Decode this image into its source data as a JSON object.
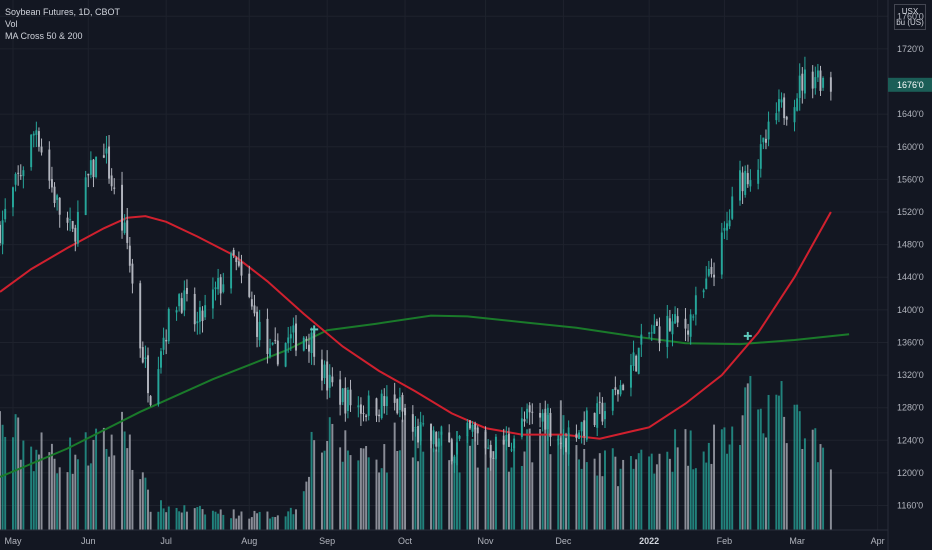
{
  "legend": {
    "symbol": "Soybean Futures, 1D, CBOT",
    "volume": "Vol",
    "indicator": "MA Cross 50 & 200"
  },
  "unit": [
    "USX",
    "bu (US)"
  ],
  "last_price_label": "1676'0",
  "colors": {
    "background": "#131722",
    "grid": "#1e222d",
    "up": "#26a69a",
    "down": "#b2b5be",
    "ma_fast": "#d0202e",
    "ma_slow": "#1a7a2a",
    "cross": "#5fc9bc",
    "price_tag": "#1b5e57",
    "axis_text": "#b2b5be"
  },
  "chart_data": {
    "type": "candlestick",
    "title": "Soybean Futures, 1D, CBOT",
    "ylim": [
      1130,
      1780
    ],
    "y_ticks": [
      {
        "v": 1160,
        "label": "1160'0"
      },
      {
        "v": 1200,
        "label": "1200'0"
      },
      {
        "v": 1240,
        "label": "1240'0"
      },
      {
        "v": 1280,
        "label": "1280'0"
      },
      {
        "v": 1320,
        "label": "1320'0"
      },
      {
        "v": 1360,
        "label": "1360'0"
      },
      {
        "v": 1400,
        "label": "1400'0"
      },
      {
        "v": 1440,
        "label": "1440'0"
      },
      {
        "v": 1480,
        "label": "1480'0"
      },
      {
        "v": 1520,
        "label": "1520'0"
      },
      {
        "v": 1560,
        "label": "1560'0"
      },
      {
        "v": 1600,
        "label": "1600'0"
      },
      {
        "v": 1640,
        "label": "1640'0"
      },
      {
        "v": 1720,
        "label": "1720'0"
      },
      {
        "v": 1760,
        "label": "1760'0"
      }
    ],
    "last_price": 1676,
    "x_ticks": [
      {
        "date": "2021-05-03",
        "label": "May"
      },
      {
        "date": "2021-06-01",
        "label": "Jun"
      },
      {
        "date": "2021-07-01",
        "label": "Jul"
      },
      {
        "date": "2021-08-02",
        "label": "Aug"
      },
      {
        "date": "2021-09-01",
        "label": "Sep"
      },
      {
        "date": "2021-10-01",
        "label": "Oct"
      },
      {
        "date": "2021-11-01",
        "label": "Nov"
      },
      {
        "date": "2021-12-01",
        "label": "Dec"
      },
      {
        "date": "2022-01-03",
        "label": "2022",
        "bold": true
      },
      {
        "date": "2022-02-01",
        "label": "Feb"
      },
      {
        "date": "2022-03-01",
        "label": "Mar"
      },
      {
        "date": "2022-04-01",
        "label": "Apr"
      }
    ],
    "x_range": [
      "2021-04-28",
      "2022-04-05"
    ],
    "close_path": [
      [
        "2021-04-28",
        1500
      ],
      [
        "2021-05-05",
        1560
      ],
      [
        "2021-05-12",
        1625
      ],
      [
        "2021-05-17",
        1560
      ],
      [
        "2021-05-21",
        1520
      ],
      [
        "2021-05-26",
        1490
      ],
      [
        "2021-06-01",
        1560
      ],
      [
        "2021-06-07",
        1600
      ],
      [
        "2021-06-11",
        1540
      ],
      [
        "2021-06-16",
        1480
      ],
      [
        "2021-06-21",
        1360
      ],
      [
        "2021-06-25",
        1300
      ],
      [
        "2021-06-29",
        1360
      ],
      [
        "2021-07-06",
        1420
      ],
      [
        "2021-07-13",
        1380
      ],
      [
        "2021-07-20",
        1420
      ],
      [
        "2021-07-27",
        1460
      ],
      [
        "2021-08-03",
        1400
      ],
      [
        "2021-08-10",
        1340
      ],
      [
        "2021-08-16",
        1360
      ],
      [
        "2021-08-23",
        1370
      ],
      [
        "2021-08-27",
        1360
      ],
      [
        "2021-09-01",
        1310
      ],
      [
        "2021-09-08",
        1290
      ],
      [
        "2021-09-15",
        1280
      ],
      [
        "2021-09-22",
        1285
      ],
      [
        "2021-09-29",
        1280
      ],
      [
        "2021-10-04",
        1250
      ],
      [
        "2021-10-12",
        1240
      ],
      [
        "2021-10-20",
        1230
      ],
      [
        "2021-10-27",
        1250
      ],
      [
        "2021-11-03",
        1230
      ],
      [
        "2021-11-10",
        1240
      ],
      [
        "2021-11-17",
        1265
      ],
      [
        "2021-11-24",
        1270
      ],
      [
        "2021-12-01",
        1235
      ],
      [
        "2021-12-06",
        1255
      ],
      [
        "2021-12-13",
        1265
      ],
      [
        "2021-12-20",
        1290
      ],
      [
        "2021-12-27",
        1330
      ],
      [
        "2022-01-03",
        1370
      ],
      [
        "2022-01-10",
        1380
      ],
      [
        "2022-01-17",
        1380
      ],
      [
        "2022-01-24",
        1420
      ],
      [
        "2022-01-31",
        1480
      ],
      [
        "2022-02-07",
        1560
      ],
      [
        "2022-02-14",
        1580
      ],
      [
        "2022-02-21",
        1640
      ],
      [
        "2022-02-25",
        1650
      ],
      [
        "2022-03-03",
        1680
      ],
      [
        "2022-03-08",
        1690
      ],
      [
        "2022-03-14",
        1676
      ]
    ],
    "ma_fast": [
      [
        "2021-04-28",
        1422
      ],
      [
        "2021-05-10",
        1450
      ],
      [
        "2021-05-24",
        1476
      ],
      [
        "2021-06-07",
        1500
      ],
      [
        "2021-06-16",
        1513
      ],
      [
        "2021-06-23",
        1515
      ],
      [
        "2021-07-01",
        1508
      ],
      [
        "2021-07-13",
        1490
      ],
      [
        "2021-07-27",
        1467
      ],
      [
        "2021-08-09",
        1435
      ],
      [
        "2021-08-23",
        1395
      ],
      [
        "2021-09-07",
        1355
      ],
      [
        "2021-09-21",
        1325
      ],
      [
        "2021-10-05",
        1300
      ],
      [
        "2021-10-19",
        1273
      ],
      [
        "2021-11-01",
        1255
      ],
      [
        "2021-11-15",
        1247
      ],
      [
        "2021-12-01",
        1247
      ],
      [
        "2021-12-15",
        1242
      ],
      [
        "2022-01-03",
        1256
      ],
      [
        "2022-01-17",
        1285
      ],
      [
        "2022-01-31",
        1320
      ],
      [
        "2022-02-14",
        1372
      ],
      [
        "2022-02-28",
        1440
      ],
      [
        "2022-03-14",
        1520
      ]
    ],
    "ma_slow": [
      [
        "2021-04-28",
        1195
      ],
      [
        "2021-05-24",
        1230
      ],
      [
        "2021-06-21",
        1275
      ],
      [
        "2021-07-19",
        1315
      ],
      [
        "2021-08-16",
        1350
      ],
      [
        "2021-09-01",
        1375
      ],
      [
        "2021-09-20",
        1383
      ],
      [
        "2021-10-11",
        1393
      ],
      [
        "2021-10-25",
        1392
      ],
      [
        "2021-11-15",
        1385
      ],
      [
        "2021-12-06",
        1378
      ],
      [
        "2021-12-27",
        1368
      ],
      [
        "2022-01-17",
        1359
      ],
      [
        "2022-02-07",
        1358
      ],
      [
        "2022-02-28",
        1363
      ],
      [
        "2022-03-21",
        1370
      ]
    ],
    "crosses": [
      {
        "date": "2021-08-27",
        "value": 1376
      },
      {
        "date": "2022-02-10",
        "value": 1368
      }
    ],
    "volume_profile": [
      [
        "2021-04-28",
        78
      ],
      [
        "2021-05-10",
        60
      ],
      [
        "2021-05-24",
        55
      ],
      [
        "2021-06-07",
        62
      ],
      [
        "2021-06-16",
        75
      ],
      [
        "2021-06-25",
        18
      ],
      [
        "2021-07-14",
        14
      ],
      [
        "2021-07-28",
        12
      ],
      [
        "2021-08-10",
        11
      ],
      [
        "2021-08-20",
        15
      ],
      [
        "2021-08-27",
        70
      ],
      [
        "2021-09-10",
        60
      ],
      [
        "2021-09-25",
        55
      ],
      [
        "2021-10-01",
        78
      ],
      [
        "2021-10-15",
        60
      ],
      [
        "2021-11-01",
        58
      ],
      [
        "2021-11-15",
        55
      ],
      [
        "2021-11-30",
        82
      ],
      [
        "2021-12-10",
        55
      ],
      [
        "2021-12-24",
        45
      ],
      [
        "2022-01-07",
        60
      ],
      [
        "2022-01-21",
        62
      ],
      [
        "2022-02-04",
        70
      ],
      [
        "2022-02-15",
        100
      ],
      [
        "2022-02-25",
        85
      ],
      [
        "2022-03-14",
        45
      ]
    ]
  }
}
